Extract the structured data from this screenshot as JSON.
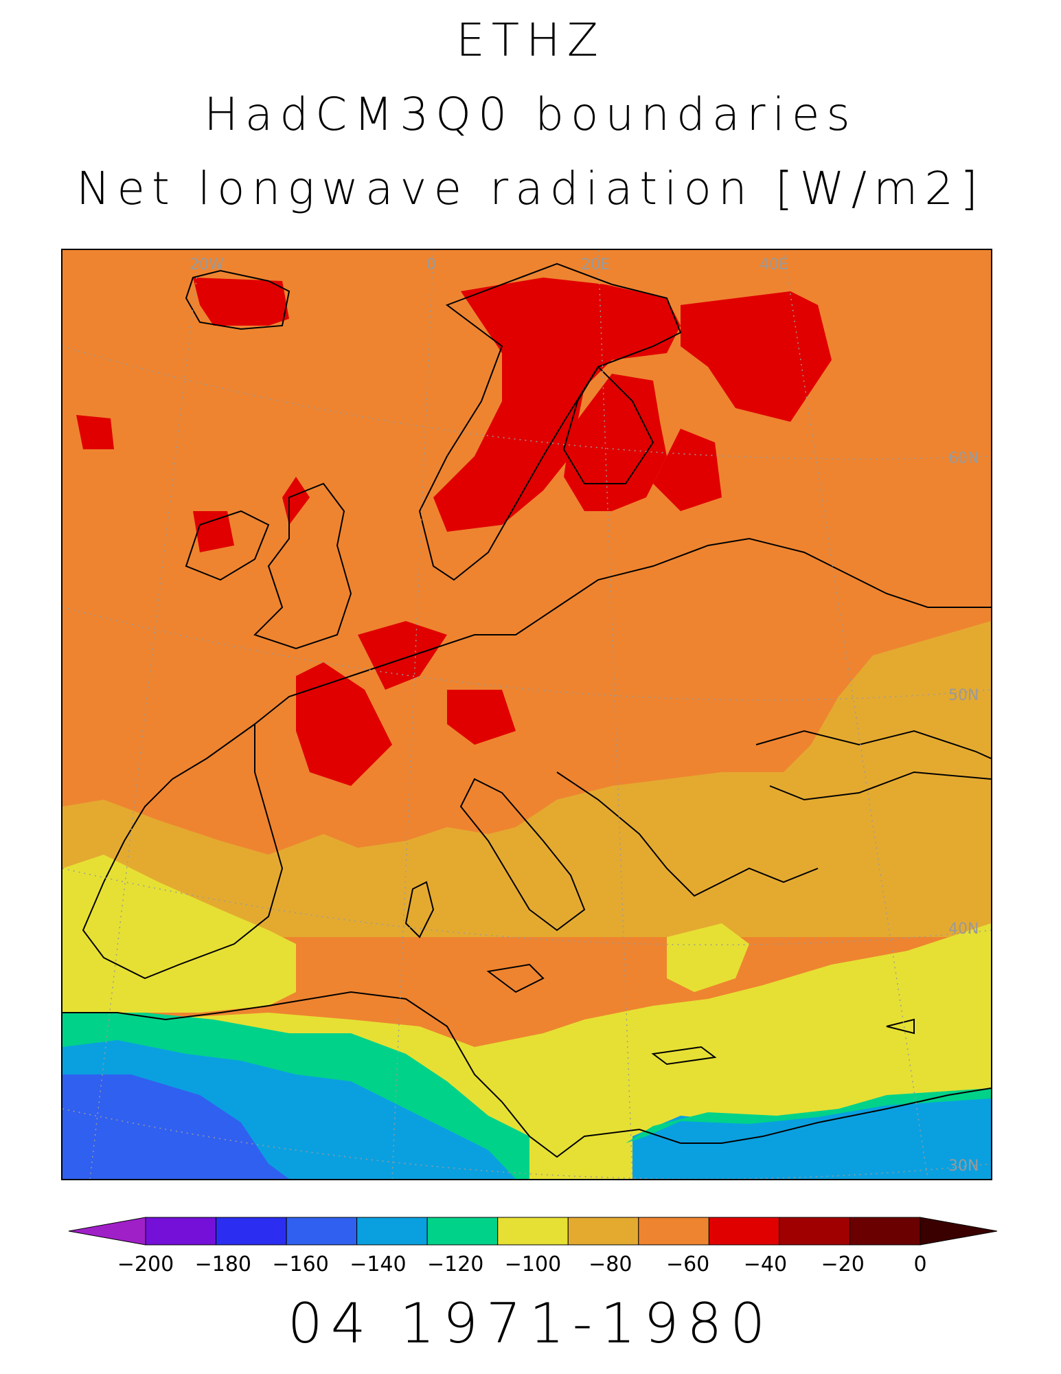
{
  "title": {
    "line1": "ETHZ",
    "line2": "HadCM3Q0 boundaries",
    "line3": "Net longwave radiation [W/m2]"
  },
  "map": {
    "longitude_labels": [
      "20W",
      "0",
      "20E",
      "40E"
    ],
    "latitude_labels": [
      "60N",
      "50N",
      "40N",
      "30N"
    ],
    "label_color": "#9a9a9a"
  },
  "colorbar": {
    "ticks": [
      "-200",
      "-180",
      "-160",
      "-140",
      "-120",
      "-100",
      "-80",
      "-60",
      "-40",
      "-20",
      "0"
    ],
    "colors": [
      "#a020c8",
      "#7410d8",
      "#2b2ef0",
      "#3060f0",
      "#0aa0e0",
      "#00d28a",
      "#e6e034",
      "#e4aa30",
      "#ee8430",
      "#e00000",
      "#a00000",
      "#6a0000",
      "#3a0000"
    ]
  },
  "footer": {
    "period": "04 1971-1980"
  }
}
